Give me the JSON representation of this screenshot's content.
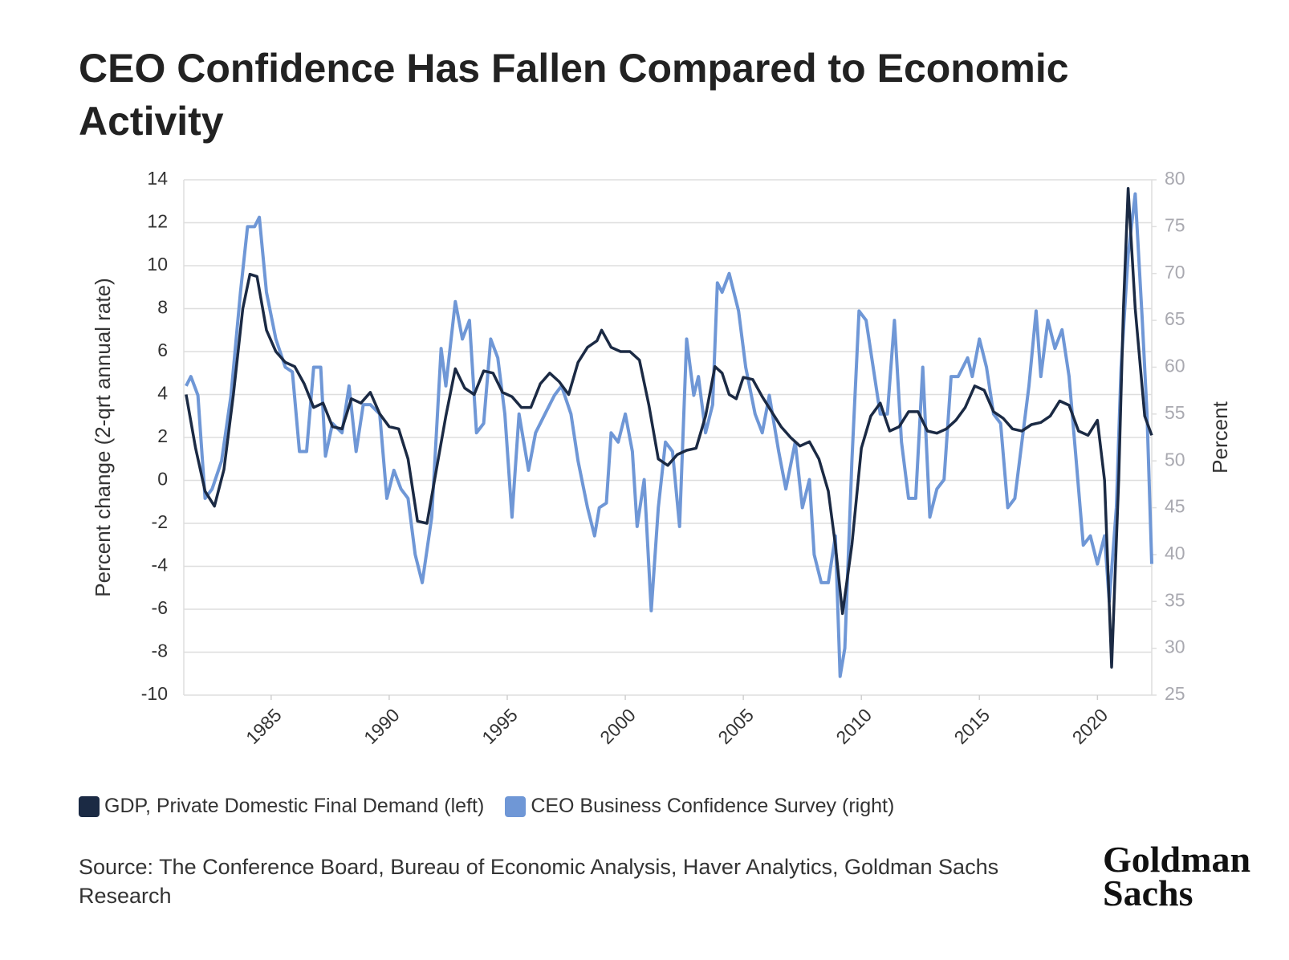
{
  "chart_data": {
    "type": "line",
    "title": "CEO Confidence Has Fallen Compared to Economic Activity",
    "ylabel": "Percent change (2-qrt annual rate)",
    "y2label": "Percent",
    "source": "Source: The Conference Board, Bureau of Economic Analysis, Haver Analytics, Goldman Sachs Research",
    "logo": [
      "Goldman",
      "Sachs"
    ],
    "xlim": [
      1981.3,
      2022.3
    ],
    "xticks": [
      1985,
      1990,
      1995,
      2000,
      2005,
      2010,
      2015,
      2020
    ],
    "ylim": [
      -10,
      14
    ],
    "yticks": [
      -10,
      -8,
      -6,
      -4,
      -2,
      0,
      2,
      4,
      6,
      8,
      10,
      12,
      14
    ],
    "y2lim": [
      25,
      80
    ],
    "y2ticks": [
      25,
      30,
      35,
      40,
      45,
      50,
      55,
      60,
      65,
      70,
      75,
      80
    ],
    "grid": true,
    "legend": "bottom",
    "series": [
      {
        "name": "GDP, Private Domestic Final Demand (left)",
        "color": "#1b2a44",
        "axis": "y",
        "x": [
          1981.4,
          1981.8,
          1982.2,
          1982.6,
          1983.0,
          1983.4,
          1983.8,
          1984.1,
          1984.4,
          1984.8,
          1985.2,
          1985.6,
          1986.0,
          1986.4,
          1986.8,
          1987.2,
          1987.6,
          1988.0,
          1988.4,
          1988.8,
          1989.2,
          1989.6,
          1990.0,
          1990.4,
          1990.8,
          1991.2,
          1991.6,
          1992.0,
          1992.4,
          1992.8,
          1993.2,
          1993.6,
          1994.0,
          1994.4,
          1994.8,
          1995.2,
          1995.6,
          1996.0,
          1996.4,
          1996.8,
          1997.2,
          1997.6,
          1998.0,
          1998.4,
          1998.8,
          1999.0,
          1999.4,
          1999.8,
          2000.2,
          2000.6,
          2001.0,
          2001.4,
          2001.8,
          2002.2,
          2002.6,
          2003.0,
          2003.4,
          2003.8,
          2004.1,
          2004.4,
          2004.7,
          2005.0,
          2005.4,
          2005.8,
          2006.2,
          2006.6,
          2007.0,
          2007.4,
          2007.8,
          2008.2,
          2008.6,
          2008.9,
          2009.2,
          2009.6,
          2010.0,
          2010.4,
          2010.8,
          2011.2,
          2011.6,
          2012.0,
          2012.4,
          2012.8,
          2013.2,
          2013.6,
          2014.0,
          2014.4,
          2014.8,
          2015.2,
          2015.6,
          2016.0,
          2016.4,
          2016.8,
          2017.2,
          2017.6,
          2018.0,
          2018.4,
          2018.8,
          2019.2,
          2019.6,
          2020.0,
          2020.3,
          2020.6,
          2020.9,
          2021.1,
          2021.3,
          2021.6,
          2022.0,
          2022.3
        ],
        "values": [
          4,
          1.5,
          -0.5,
          -1.2,
          0.5,
          4,
          8,
          9.6,
          9.5,
          7,
          6,
          5.5,
          5.3,
          4.5,
          3.4,
          3.6,
          2.5,
          2.4,
          3.8,
          3.6,
          4.1,
          3.1,
          2.5,
          2.4,
          1,
          -1.9,
          -2,
          0.5,
          3,
          5.2,
          4.3,
          4,
          5.1,
          5,
          4.1,
          3.9,
          3.4,
          3.4,
          4.5,
          5,
          4.6,
          4,
          5.5,
          6.2,
          6.5,
          7,
          6.2,
          6,
          6,
          5.6,
          3.5,
          1,
          0.7,
          1.2,
          1.4,
          1.5,
          3,
          5.3,
          5,
          4,
          3.8,
          4.8,
          4.7,
          3.9,
          3.2,
          2.5,
          2,
          1.6,
          1.8,
          1,
          -0.5,
          -3,
          -6.2,
          -3,
          1.5,
          3,
          3.6,
          2.3,
          2.5,
          3.2,
          3.2,
          2.3,
          2.2,
          2.4,
          2.8,
          3.4,
          4.4,
          4.2,
          3.2,
          2.9,
          2.4,
          2.3,
          2.6,
          2.7,
          3,
          3.7,
          3.5,
          2.3,
          2.1,
          2.8,
          0,
          -8.7,
          0,
          8,
          13.6,
          8,
          3,
          2.1
        ]
      },
      {
        "name": "CEO Business Confidence Survey (right)",
        "color": "#6f97d6",
        "axis": "y2",
        "x": [
          1981.4,
          1981.6,
          1981.9,
          1982.2,
          1982.5,
          1982.9,
          1983.3,
          1983.7,
          1984.0,
          1984.3,
          1984.5,
          1984.8,
          1985.2,
          1985.6,
          1985.9,
          1986.2,
          1986.5,
          1986.8,
          1987.1,
          1987.3,
          1987.6,
          1988.0,
          1988.3,
          1988.6,
          1988.9,
          1989.2,
          1989.6,
          1989.9,
          1990.2,
          1990.5,
          1990.8,
          1991.1,
          1991.4,
          1991.8,
          1992.2,
          1992.4,
          1992.8,
          1993.1,
          1993.4,
          1993.7,
          1994.0,
          1994.3,
          1994.6,
          1994.9,
          1995.2,
          1995.5,
          1995.9,
          1996.2,
          1996.6,
          1997.0,
          1997.3,
          1997.7,
          1998.0,
          1998.4,
          1998.7,
          1998.9,
          1999.2,
          1999.4,
          1999.7,
          2000.0,
          2000.3,
          2000.5,
          2000.8,
          2001.1,
          2001.4,
          2001.7,
          2002.0,
          2002.3,
          2002.6,
          2002.9,
          2003.1,
          2003.4,
          2003.7,
          2003.9,
          2004.1,
          2004.4,
          2004.8,
          2005.1,
          2005.5,
          2005.8,
          2006.1,
          2006.5,
          2006.8,
          2007.2,
          2007.5,
          2007.8,
          2008.0,
          2008.3,
          2008.6,
          2008.9,
          2009.1,
          2009.3,
          2009.6,
          2009.9,
          2010.2,
          2010.5,
          2010.8,
          2011.1,
          2011.4,
          2011.7,
          2012.0,
          2012.3,
          2012.6,
          2012.9,
          2013.2,
          2013.5,
          2013.8,
          2014.1,
          2014.5,
          2014.7,
          2015.0,
          2015.3,
          2015.6,
          2015.9,
          2016.2,
          2016.5,
          2016.8,
          2017.1,
          2017.4,
          2017.6,
          2017.9,
          2018.2,
          2018.5,
          2018.8,
          2019.1,
          2019.4,
          2019.7,
          2020.0,
          2020.3,
          2020.5,
          2020.8,
          2021.0,
          2021.3,
          2021.6,
          2021.9,
          2022.1,
          2022.3
        ],
        "values": [
          58,
          59,
          57,
          46,
          47,
          50,
          57,
          68,
          75,
          75,
          76,
          68,
          63,
          60,
          59.5,
          51,
          51,
          60,
          60,
          50.5,
          54,
          53,
          58,
          51,
          56,
          56,
          55,
          46,
          49,
          47,
          46,
          40,
          37,
          44,
          62,
          58,
          67,
          63,
          65,
          53,
          54,
          63,
          61,
          55,
          44,
          55,
          49,
          53,
          55,
          57,
          58,
          55,
          50,
          45,
          42,
          45,
          45.5,
          53,
          52,
          55,
          51,
          43,
          48,
          34,
          45,
          52,
          51,
          43,
          63,
          57,
          59,
          53,
          56,
          69,
          68,
          70,
          66,
          60,
          55,
          53,
          57,
          51,
          47,
          52,
          45,
          48,
          40,
          37,
          37,
          42,
          27,
          30,
          50,
          66,
          65,
          60,
          55,
          55,
          65,
          52,
          46,
          46,
          60,
          44,
          47,
          48,
          59,
          59,
          61,
          59,
          63,
          60,
          55,
          54,
          45,
          46,
          52,
          58,
          66,
          59,
          65,
          62,
          64,
          59,
          50,
          41,
          42,
          39,
          42,
          35,
          45,
          60,
          72,
          78.5,
          65,
          55,
          39
        ]
      }
    ]
  }
}
